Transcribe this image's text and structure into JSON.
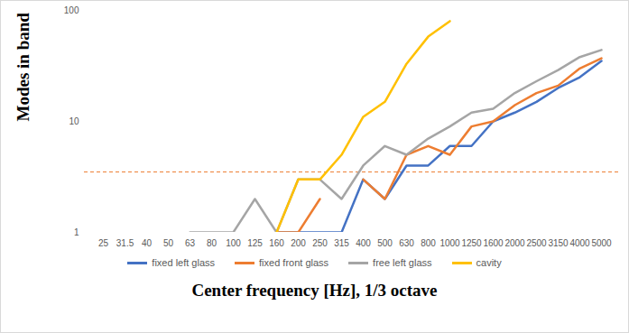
{
  "chart_data": {
    "type": "line",
    "x_label": "Center frequency [Hz], 1/3 octave",
    "y_label": "Modes in band",
    "categories": [
      "25",
      "31.5",
      "40",
      "50",
      "63",
      "80",
      "100",
      "125",
      "160",
      "200",
      "250",
      "315",
      "400",
      "500",
      "630",
      "800",
      "1000",
      "1250",
      "1600",
      "2000",
      "2500",
      "3150",
      "4000",
      "5000"
    ],
    "series": [
      {
        "name": "fixed left glass",
        "color": "#4472c4",
        "values": [
          null,
          null,
          null,
          null,
          null,
          null,
          null,
          null,
          1,
          1,
          1,
          1,
          3,
          2,
          4,
          4,
          6,
          6,
          10,
          12,
          15,
          20,
          25,
          35
        ]
      },
      {
        "name": "fixed front glass",
        "color": "#ed7d31",
        "values": [
          null,
          null,
          null,
          null,
          null,
          null,
          null,
          null,
          1,
          1,
          2,
          null,
          3,
          2,
          5,
          6,
          5,
          9,
          10,
          14,
          18,
          21,
          30,
          37
        ]
      },
      {
        "name": "free left glass",
        "color": "#a5a5a5",
        "values": [
          null,
          null,
          null,
          null,
          1,
          1,
          1,
          2,
          1,
          3,
          3,
          2,
          4,
          6,
          5,
          7,
          9,
          12,
          13,
          18,
          23,
          29,
          38,
          44
        ]
      },
      {
        "name": "cavity",
        "color": "#ffc000",
        "values": [
          null,
          null,
          null,
          null,
          null,
          null,
          null,
          null,
          1,
          3,
          3,
          5,
          11,
          15,
          33,
          58,
          80,
          null,
          null,
          null,
          null,
          null,
          null,
          null
        ]
      }
    ],
    "ylim": [
      1,
      100
    ],
    "yticks": [
      1,
      10,
      100
    ],
    "log": "y",
    "grid": false,
    "legend": "bottom",
    "reference_line": {
      "value": 3.5,
      "color": "#ed7d31",
      "line_style": "dashed"
    }
  }
}
